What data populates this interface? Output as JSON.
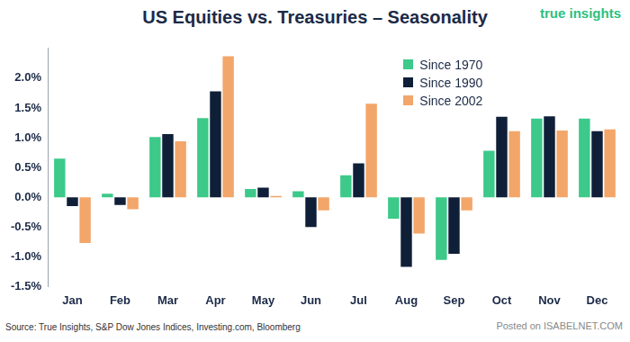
{
  "chart_data": {
    "type": "bar",
    "title": "US Equities vs. Treasuries – Seasonality",
    "logo": "true insights",
    "source": "Source: True Insights, S&P Dow Jones Indices, Investing.com, Bloomberg",
    "watermark": [
      "Posted on",
      "ISABELNET.COM"
    ],
    "categories": [
      "Jan",
      "Feb",
      "Mar",
      "Apr",
      "May",
      "Jun",
      "Jul",
      "Aug",
      "Sep",
      "Oct",
      "Nov",
      "Dec"
    ],
    "series": [
      {
        "name": "Since 1970",
        "color": "#3cc98a",
        "values": [
          0.65,
          0.06,
          1.01,
          1.33,
          0.14,
          0.1,
          0.37,
          -0.36,
          -1.05,
          0.78,
          1.32,
          1.32
        ]
      },
      {
        "name": "Since 1990",
        "color": "#0f1f38",
        "values": [
          -0.15,
          -0.13,
          1.06,
          1.78,
          0.16,
          -0.5,
          0.57,
          -1.17,
          -0.95,
          1.35,
          1.36,
          1.11
        ]
      },
      {
        "name": "Since 2002",
        "color": "#f2a66a",
        "values": [
          -0.77,
          -0.2,
          0.94,
          2.37,
          0.02,
          -0.22,
          1.57,
          -0.61,
          -0.22,
          1.11,
          1.12,
          1.14
        ]
      }
    ],
    "ylim": [
      -1.5,
      2.5
    ],
    "yticks": [
      {
        "value": -1.5,
        "label": "-1.5%"
      },
      {
        "value": -1.0,
        "label": "-1.0%"
      },
      {
        "value": -0.5,
        "label": "-0.5%"
      },
      {
        "value": 0,
        "label": "0.0%"
      },
      {
        "value": 0.5,
        "label": "0.5%"
      },
      {
        "value": 1.0,
        "label": "1.0%"
      },
      {
        "value": 1.5,
        "label": "1.5%"
      },
      {
        "value": 2.0,
        "label": "2.0%"
      }
    ],
    "grid": false,
    "legend": "top right"
  }
}
